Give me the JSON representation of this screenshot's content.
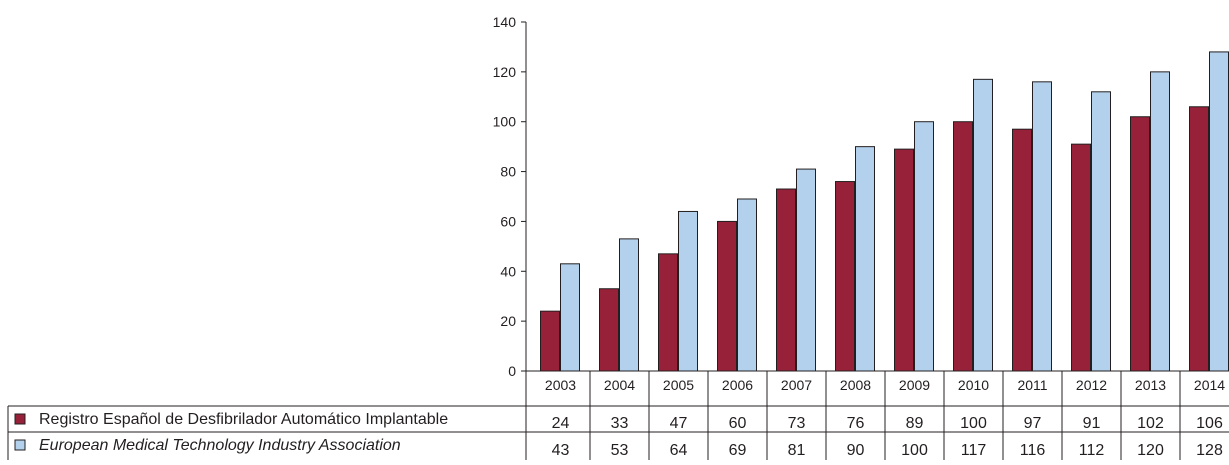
{
  "chart_data": {
    "type": "bar",
    "title": "",
    "xlabel": "",
    "ylabel": "",
    "ylim": [
      0,
      140
    ],
    "yticks": [
      0,
      20,
      40,
      60,
      80,
      100,
      120,
      140
    ],
    "grid": false,
    "legend_placement": "data-table-left",
    "categories": [
      "2003",
      "2004",
      "2005",
      "2006",
      "2007",
      "2008",
      "2009",
      "2010",
      "2011",
      "2012",
      "2013",
      "2014"
    ],
    "series": [
      {
        "name": "Registro Español de Desfibrilador Automático Implantable",
        "color": "#98213a",
        "values": [
          24,
          33,
          47,
          60,
          73,
          76,
          89,
          100,
          97,
          91,
          102,
          106
        ]
      },
      {
        "name": "European Medical Technology Industry Association",
        "color": "#b3d1ec",
        "italic": true,
        "values": [
          43,
          53,
          64,
          69,
          81,
          90,
          100,
          117,
          116,
          112,
          120,
          128
        ]
      }
    ],
    "table_values": [
      [
        "24",
        "33",
        "47",
        "60",
        "73",
        "76",
        "89",
        "100",
        "97",
        "91",
        "102",
        "106"
      ],
      [
        "43",
        "53",
        "64",
        "69",
        "81",
        "90",
        "100",
        "117",
        "116",
        "112",
        "120",
        "128"
      ]
    ]
  }
}
